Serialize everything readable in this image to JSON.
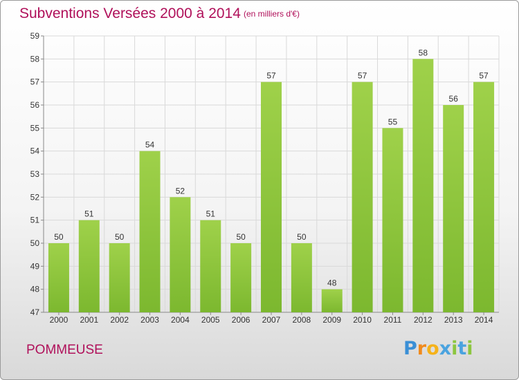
{
  "chart_data": {
    "type": "bar",
    "title": "Subventions Versées 2000 à 2014",
    "subtitle": "(en milliers d'€)",
    "categories": [
      "2000",
      "2001",
      "2002",
      "2003",
      "2004",
      "2005",
      "2006",
      "2007",
      "2008",
      "2009",
      "2010",
      "2011",
      "2012",
      "2013",
      "2014"
    ],
    "values": [
      50,
      51,
      50,
      54,
      52,
      51,
      50,
      57,
      50,
      48,
      57,
      55,
      58,
      56,
      57
    ],
    "ylim": [
      47,
      59
    ],
    "yticks": [
      47,
      48,
      49,
      50,
      51,
      52,
      53,
      54,
      55,
      56,
      57,
      58,
      59
    ],
    "grid": true,
    "bar_color": "#7cb82f",
    "bar_color_light": "#9fd14a"
  },
  "location": "POMMEUSE",
  "logo": {
    "letters": [
      "P",
      "r",
      "o",
      "x",
      "i",
      "t",
      "i"
    ],
    "colors": [
      "#3a8fd6",
      "#f08a1c",
      "#f5b21a",
      "#4aa3df",
      "#8cc63f",
      "#4aa3df",
      "#8cc63f"
    ]
  }
}
